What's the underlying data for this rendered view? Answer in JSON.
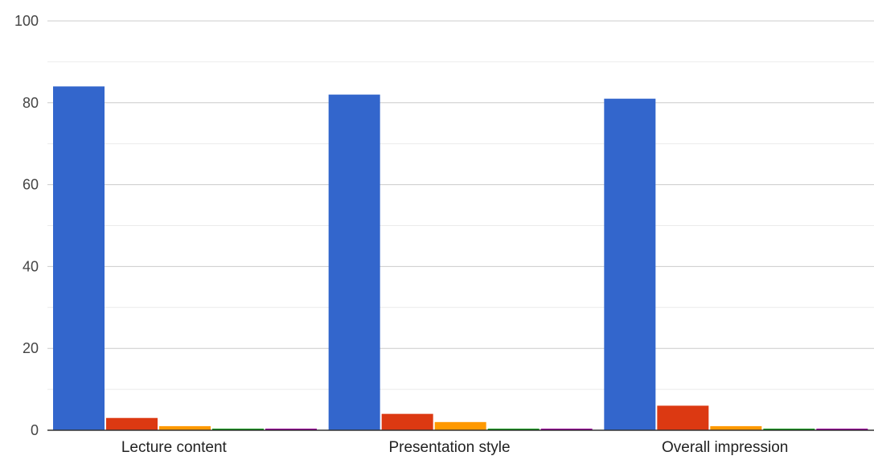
{
  "chart_data": {
    "type": "bar",
    "categories": [
      "Lecture content",
      "Presentation style",
      "Overall impression"
    ],
    "series": [
      {
        "color": "#3366cc",
        "values": [
          84,
          82,
          81
        ]
      },
      {
        "color": "#dc3912",
        "values": [
          3,
          4,
          6
        ]
      },
      {
        "color": "#ff9900",
        "values": [
          1,
          2,
          1
        ]
      },
      {
        "color": "#109618",
        "values": [
          0.2,
          0.2,
          0.2
        ]
      },
      {
        "color": "#990099",
        "values": [
          0.2,
          0.2,
          0.2
        ]
      }
    ],
    "ylim": [
      0,
      100
    ],
    "yticks": [
      0,
      20,
      40,
      60,
      80,
      100
    ],
    "grid": true,
    "minor_grid": true,
    "legend": "none",
    "colors": {
      "grid": "#cccccc",
      "minor_grid": "#ebebeb",
      "baseline": "#333333"
    }
  }
}
